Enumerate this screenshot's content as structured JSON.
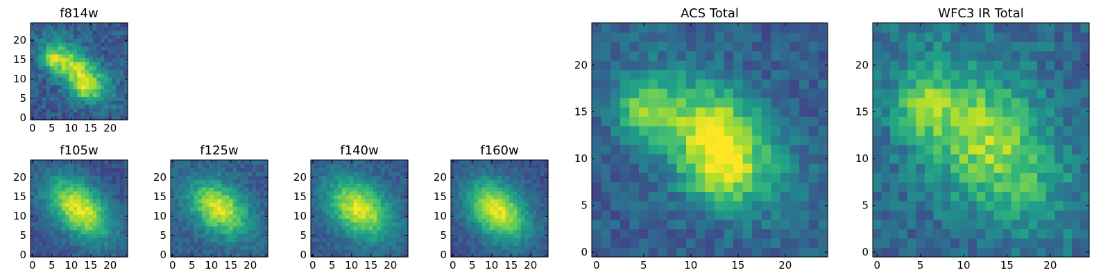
{
  "chart_data": [
    {
      "type": "heatmap",
      "title": "f814w",
      "profile": "acs",
      "xlim": [
        0,
        24
      ],
      "ylim": [
        0,
        24
      ],
      "xticks": [
        0,
        5,
        10,
        15,
        20
      ],
      "yticks": [
        0,
        5,
        10,
        15,
        20
      ],
      "tick_labels_x": [
        "0",
        "5",
        "10",
        "15",
        "20"
      ],
      "tick_labels_y": [
        "0",
        "5",
        "10",
        "15",
        "20"
      ]
    },
    {
      "type": "heatmap",
      "title": "f105w",
      "profile": "ir_a",
      "xlim": [
        0,
        24
      ],
      "ylim": [
        0,
        24
      ],
      "xticks": [
        0,
        5,
        10,
        15,
        20
      ],
      "yticks": [
        0,
        5,
        10,
        15,
        20
      ],
      "tick_labels_x": [
        "0",
        "5",
        "10",
        "15",
        "20"
      ],
      "tick_labels_y": [
        "0",
        "5",
        "10",
        "15",
        "20"
      ]
    },
    {
      "type": "heatmap",
      "title": "f125w",
      "profile": "ir_b",
      "xlim": [
        0,
        24
      ],
      "ylim": [
        0,
        24
      ],
      "xticks": [
        0,
        5,
        10,
        15,
        20
      ],
      "yticks": [
        0,
        5,
        10,
        15,
        20
      ],
      "tick_labels_x": [
        "0",
        "5",
        "10",
        "15",
        "20"
      ],
      "tick_labels_y": [
        "0",
        "5",
        "10",
        "15",
        "20"
      ]
    },
    {
      "type": "heatmap",
      "title": "f140w",
      "profile": "ir_c",
      "xlim": [
        0,
        24
      ],
      "ylim": [
        0,
        24
      ],
      "xticks": [
        0,
        5,
        10,
        15,
        20
      ],
      "yticks": [
        0,
        5,
        10,
        15,
        20
      ],
      "tick_labels_x": [
        "0",
        "5",
        "10",
        "15",
        "20"
      ],
      "tick_labels_y": [
        "0",
        "5",
        "10",
        "15",
        "20"
      ]
    },
    {
      "type": "heatmap",
      "title": "f160w",
      "profile": "ir_d",
      "xlim": [
        0,
        24
      ],
      "ylim": [
        0,
        24
      ],
      "xticks": [
        0,
        5,
        10,
        15,
        20
      ],
      "yticks": [
        0,
        5,
        10,
        15,
        20
      ],
      "tick_labels_x": [
        "0",
        "5",
        "10",
        "15",
        "20"
      ],
      "tick_labels_y": [
        "0",
        "5",
        "10",
        "15",
        "20"
      ]
    },
    {
      "type": "heatmap",
      "title": "ACS Total",
      "profile": "acs_total",
      "xlim": [
        0,
        24
      ],
      "ylim": [
        0,
        24
      ],
      "xticks": [
        0,
        5,
        10,
        15,
        20
      ],
      "yticks": [
        0,
        5,
        10,
        15,
        20
      ],
      "tick_labels_x": [
        "0",
        "5",
        "10",
        "15",
        "20"
      ],
      "tick_labels_y": [
        "0",
        "5",
        "10",
        "15",
        "20"
      ]
    },
    {
      "type": "heatmap",
      "title": "WFC3 IR Total",
      "profile": "ir_total",
      "xlim": [
        0,
        24
      ],
      "ylim": [
        0,
        24
      ],
      "xticks": [
        0,
        5,
        10,
        15,
        20
      ],
      "yticks": [
        0,
        5,
        10,
        15,
        20
      ],
      "tick_labels_x": [
        "0",
        "5",
        "10",
        "15",
        "20"
      ],
      "tick_labels_y": [
        "0",
        "5",
        "10",
        "15",
        "20"
      ]
    }
  ],
  "colormap": "viridis",
  "colors": {
    "low": "#440154",
    "mid": "#21918c",
    "high": "#fde725",
    "frame": "#000000"
  }
}
